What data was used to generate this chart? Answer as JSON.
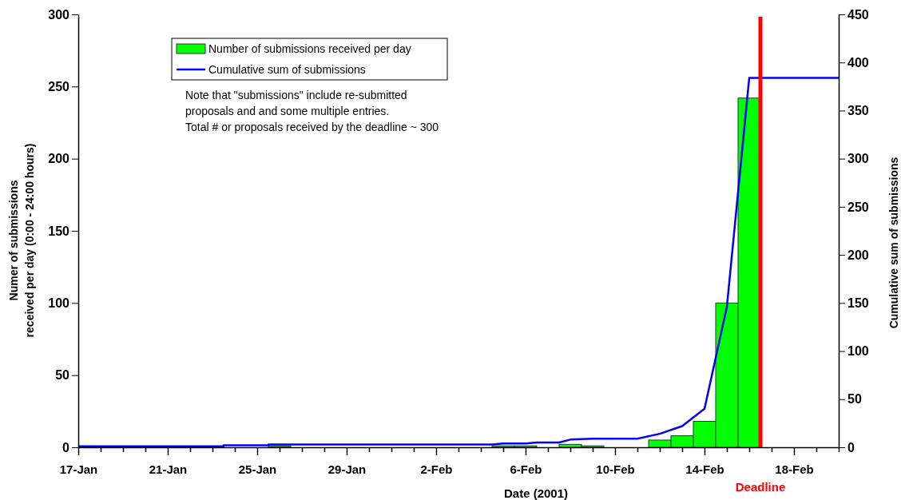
{
  "chart_data": {
    "type": "bar",
    "xlabel": "Date (2001)",
    "ylabel": "Numer of submissions\nreceived per day (0:00 - 24:00 hours)",
    "y2label": "Cumulative sum of submissions",
    "xlim": [
      "2001-01-17",
      "2001-02-20"
    ],
    "xticks": [
      {
        "value": "2001-01-17",
        "label": "17-Jan"
      },
      {
        "value": "2001-01-18",
        "label": null
      },
      {
        "value": "2001-01-19",
        "label": null
      },
      {
        "value": "2001-01-20",
        "label": null
      },
      {
        "value": "2001-01-21",
        "label": "21-Jan"
      },
      {
        "value": "2001-01-22",
        "label": null
      },
      {
        "value": "2001-01-23",
        "label": null
      },
      {
        "value": "2001-01-24",
        "label": null
      },
      {
        "value": "2001-01-25",
        "label": "25-Jan"
      },
      {
        "value": "2001-01-26",
        "label": null
      },
      {
        "value": "2001-01-27",
        "label": null
      },
      {
        "value": "2001-01-28",
        "label": null
      },
      {
        "value": "2001-01-29",
        "label": "29-Jan"
      },
      {
        "value": "2001-01-30",
        "label": null
      },
      {
        "value": "2001-01-31",
        "label": null
      },
      {
        "value": "2001-02-01",
        "label": null
      },
      {
        "value": "2001-02-02",
        "label": "2-Feb"
      },
      {
        "value": "2001-02-03",
        "label": null
      },
      {
        "value": "2001-02-04",
        "label": null
      },
      {
        "value": "2001-02-05",
        "label": null
      },
      {
        "value": "2001-02-06",
        "label": "6-Feb"
      },
      {
        "value": "2001-02-07",
        "label": null
      },
      {
        "value": "2001-02-08",
        "label": null
      },
      {
        "value": "2001-02-09",
        "label": null
      },
      {
        "value": "2001-02-10",
        "label": "10-Feb"
      },
      {
        "value": "2001-02-11",
        "label": null
      },
      {
        "value": "2001-02-12",
        "label": null
      },
      {
        "value": "2001-02-13",
        "label": null
      },
      {
        "value": "2001-02-14",
        "label": "14-Feb"
      },
      {
        "value": "2001-02-15",
        "label": null
      },
      {
        "value": "2001-02-16",
        "label": null
      },
      {
        "value": "2001-02-17",
        "label": null
      },
      {
        "value": "2001-02-18",
        "label": "18-Feb"
      },
      {
        "value": "2001-02-19",
        "label": null
      },
      {
        "value": "2001-02-20",
        "label": null
      }
    ],
    "ylim": [
      0,
      300
    ],
    "yticks": [
      0,
      50,
      100,
      150,
      200,
      250,
      300
    ],
    "y2lim": [
      0,
      450
    ],
    "y2ticks": [
      0,
      50,
      100,
      150,
      200,
      250,
      300,
      350,
      400,
      450
    ],
    "legend": "top left",
    "series": [
      {
        "name": "Number of submissions  received per day",
        "color": "#00ff00",
        "x": [
          "2001-01-26",
          "2001-02-05",
          "2001-02-06",
          "2001-02-08",
          "2001-02-09",
          "2001-02-12",
          "2001-02-13",
          "2001-02-14",
          "2001-02-15",
          "2001-02-16"
        ],
        "values": [
          1,
          1,
          1,
          2,
          1,
          5,
          8,
          18,
          100,
          242
        ]
      },
      {
        "name": "Cumulative sum of submissions",
        "type": "line",
        "axis": "y2",
        "color": "#0000ff",
        "x": [
          "2001-01-17",
          "2001-01-23T12:00",
          "2001-01-23T12:00",
          "2001-01-25T12:00",
          "2001-01-25T12:00",
          "2001-02-04T12:00",
          "2001-02-05",
          "2001-02-06",
          "2001-02-06T12:00",
          "2001-02-07T12:00",
          "2001-02-08",
          "2001-02-09",
          "2001-02-11",
          "2001-02-12",
          "2001-02-13",
          "2001-02-14",
          "2001-02-15",
          "2001-02-16",
          "2001-02-20"
        ],
        "values": [
          1,
          1,
          2,
          2,
          3,
          3,
          4,
          4,
          5,
          5,
          8,
          9,
          9,
          14,
          22,
          40,
          146,
          384,
          384
        ]
      }
    ],
    "ref_lines": [
      {
        "axis": "x",
        "value": "2001-02-16T12:00",
        "label": "Deadline",
        "color": "#ff0000"
      }
    ],
    "annotations": [
      "Note that \"submissions\" include re-submitted\nproposals and and some multiple entries.\nTotal # or proposals received by the deadline ~ 300"
    ]
  }
}
